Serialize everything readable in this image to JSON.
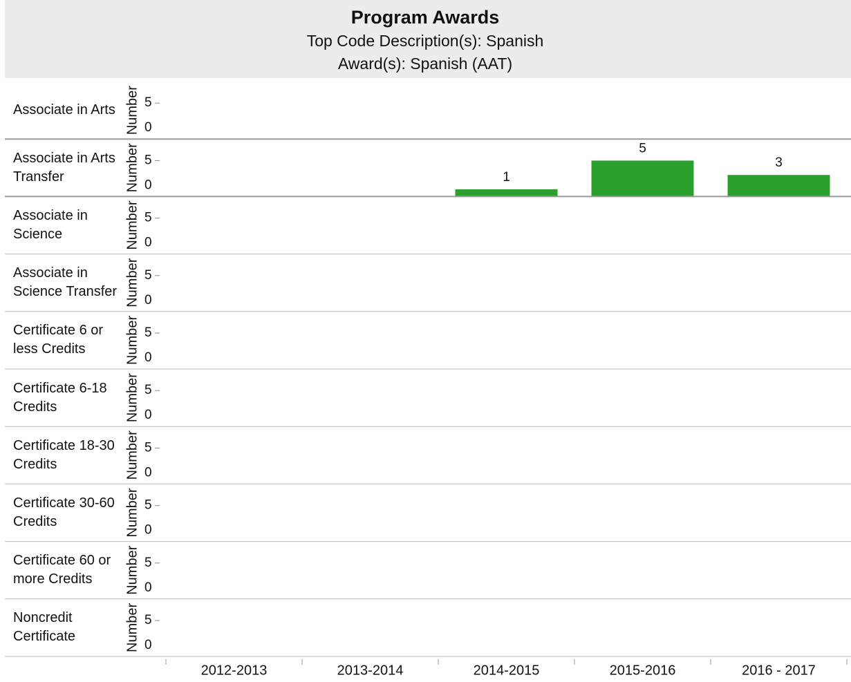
{
  "chart_data": {
    "type": "bar",
    "title": "Program Awards",
    "subtitle": [
      "Top Code Description(s): Spanish",
      "Award(s): Spanish (AAT)"
    ],
    "y_label": "Number",
    "categories": [
      "2012-2013",
      "2013-2014",
      "2014-2015",
      "2015-2016",
      "2016 - 2017"
    ],
    "color": "#2ca02c",
    "ylim": [
      0,
      8
    ],
    "yticks": [
      0,
      5
    ],
    "panels": [
      {
        "name": "Associate in Arts",
        "values": [
          null,
          null,
          null,
          null,
          null
        ]
      },
      {
        "name": "Associate in Arts Transfer",
        "values": [
          null,
          null,
          1,
          5,
          3
        ]
      },
      {
        "name": "Associate in Science",
        "values": [
          null,
          null,
          null,
          null,
          null
        ]
      },
      {
        "name": "Associate in Science Transfer",
        "values": [
          null,
          null,
          null,
          null,
          null
        ]
      },
      {
        "name": "Certificate 6 or less Credits",
        "values": [
          null,
          null,
          null,
          null,
          null
        ]
      },
      {
        "name": "Certificate 6-18 Credits",
        "values": [
          null,
          null,
          null,
          null,
          null
        ]
      },
      {
        "name": "Certificate 18-30 Credits",
        "values": [
          null,
          null,
          null,
          null,
          null
        ]
      },
      {
        "name": "Certificate 30-60 Credits",
        "values": [
          null,
          null,
          null,
          null,
          null
        ]
      },
      {
        "name": "Certificate 60 or more Credits",
        "values": [
          null,
          null,
          null,
          null,
          null
        ]
      },
      {
        "name": "Noncredit Certificate",
        "values": [
          null,
          null,
          null,
          null,
          null
        ]
      }
    ]
  }
}
